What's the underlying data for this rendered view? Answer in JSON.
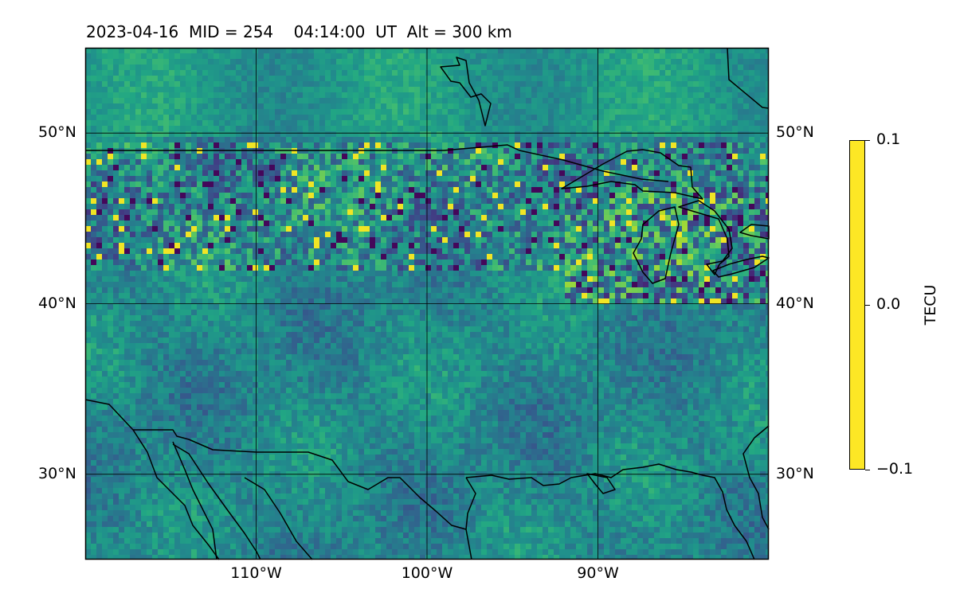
{
  "title": "2023-04-16  MID = 254    04:14:00  UT  Alt = 300 km",
  "map": {
    "projection": "equirectangular",
    "lon_range": [
      -120,
      -80
    ],
    "lat_range": [
      25,
      55
    ],
    "graticule_lat": [
      30,
      40,
      50
    ],
    "graticule_lon": [
      -110,
      -100,
      -90
    ],
    "lat_labels": [
      {
        "value": 50,
        "text": "50°N"
      },
      {
        "value": 40,
        "text": "40°N"
      },
      {
        "value": 30,
        "text": "30°N"
      }
    ],
    "lon_labels": [
      {
        "value": -110,
        "text": "110°W"
      },
      {
        "value": -100,
        "text": "100°W"
      },
      {
        "value": -90,
        "text": "90°W"
      }
    ],
    "colormap": "viridis",
    "coastline_color": "#000000",
    "gridline_color": "#000000"
  },
  "colorbar": {
    "label": "TECU",
    "min": -0.1,
    "max": 0.1,
    "ticks": [
      {
        "value": 0.1,
        "text": "0.1"
      },
      {
        "value": 0.0,
        "text": "0.0"
      },
      {
        "value": -0.1,
        "text": "−0.1"
      }
    ]
  }
}
